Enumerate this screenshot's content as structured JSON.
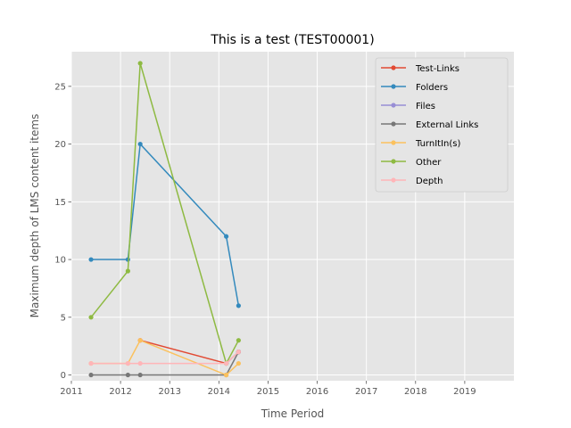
{
  "chart_data": {
    "type": "line",
    "title": "This is a test (TEST00001)",
    "xlabel": "Time Period",
    "ylabel": "Maximum depth of LMS content items",
    "xlim": [
      2011,
      2020
    ],
    "ylim": [
      -0.5,
      28
    ],
    "xticks": [
      2011,
      2012,
      2013,
      2014,
      2015,
      2016,
      2017,
      2018,
      2019
    ],
    "yticks": [
      0,
      5,
      10,
      15,
      20,
      25
    ],
    "grid": true,
    "legend_position": "top-right",
    "series": [
      {
        "name": "Test-Links",
        "color": "#e24a33",
        "x": [
          2012.4,
          2014.15,
          2014.4
        ],
        "y": [
          3,
          1,
          2
        ]
      },
      {
        "name": "Folders",
        "color": "#348abd",
        "x": [
          2011.4,
          2012.15,
          2012.4,
          2014.15,
          2014.4
        ],
        "y": [
          10,
          10,
          20,
          12,
          6
        ]
      },
      {
        "name": "Files",
        "color": "#988ed5",
        "x": [
          2014.15,
          2014.4
        ],
        "y": [
          1,
          2
        ]
      },
      {
        "name": "External Links",
        "color": "#777777",
        "x": [
          2011.4,
          2012.15,
          2012.4,
          2014.15,
          2014.4
        ],
        "y": [
          0,
          0,
          0,
          0,
          2
        ]
      },
      {
        "name": "TurnItIn(s)",
        "color": "#fbc15e",
        "x": [
          2011.4,
          2012.15,
          2012.4,
          2014.15,
          2014.4
        ],
        "y": [
          1,
          1,
          3,
          0,
          1
        ]
      },
      {
        "name": "Other",
        "color": "#8eba42",
        "x": [
          2011.4,
          2012.15,
          2012.4,
          2014.15,
          2014.4
        ],
        "y": [
          5,
          9,
          27,
          1,
          3
        ]
      },
      {
        "name": "Depth",
        "color": "#ffb5b8",
        "x": [
          2011.4,
          2012.15,
          2012.4,
          2014.15,
          2014.4
        ],
        "y": [
          1,
          1,
          1,
          1,
          2
        ]
      }
    ]
  }
}
